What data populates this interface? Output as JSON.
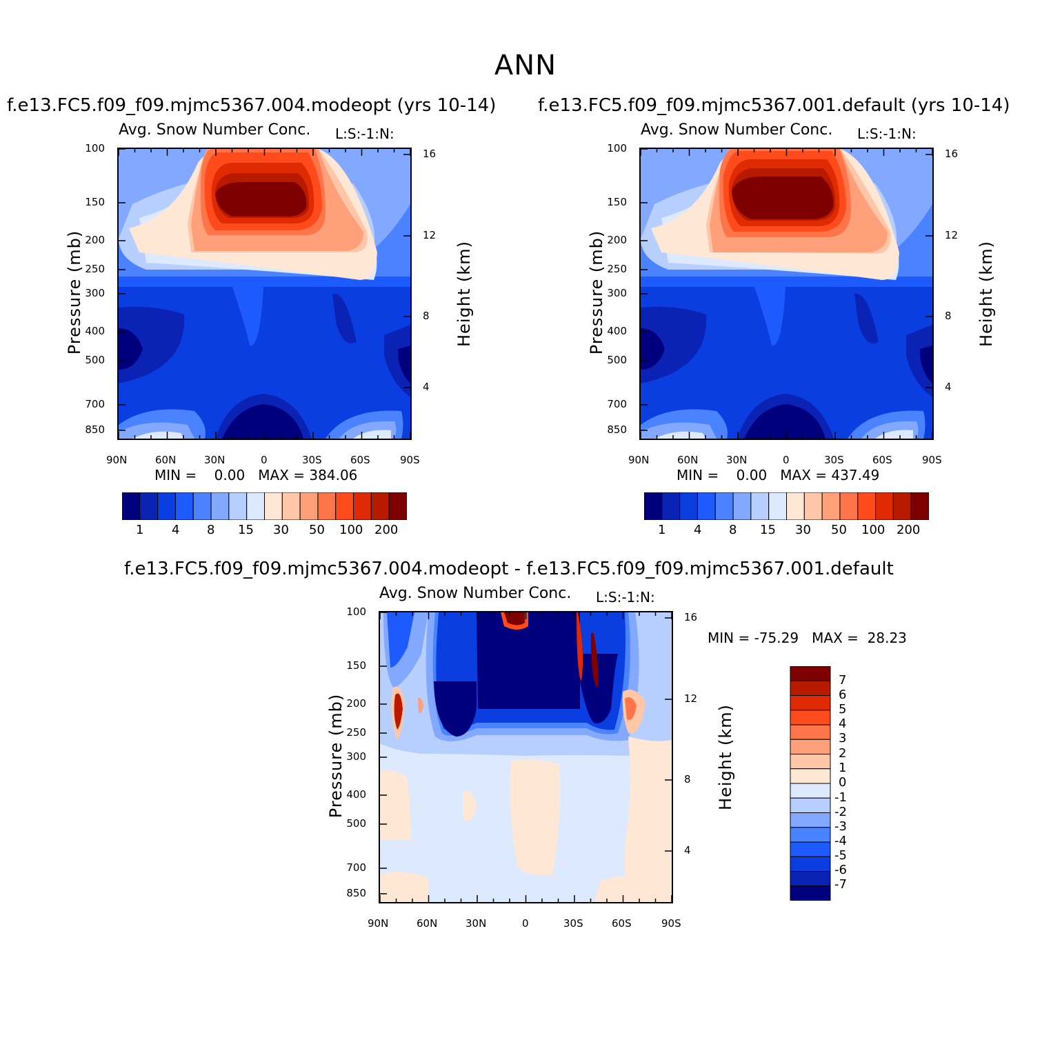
{
  "figure": {
    "title": "ANN",
    "palette": [
      "#00007f",
      "#0a23b4",
      "#0b3ee0",
      "#1e5bff",
      "#4a82ff",
      "#82a9ff",
      "#b7cfff",
      "#dce9ff",
      "#ffe7d6",
      "#ffc6a8",
      "#ffa07a",
      "#ff7448",
      "#ff4a1c",
      "#e02a04",
      "#b81a00",
      "#7f0000"
    ]
  },
  "chart_data": [
    {
      "type": "contour",
      "panel": "model",
      "title": "f.e13.FC5.f09_f09.mjmc5367.004.modeopt (yrs 10-14)",
      "subtitle_left": "Avg. Snow Number Conc.",
      "subtitle_right": "L:S:-1:N:",
      "ylabel": "Pressure (mb)",
      "ylabel_right": "Height (km)",
      "x_ticks": [
        "90N",
        "60N",
        "30N",
        "0",
        "30S",
        "60S",
        "90S"
      ],
      "y_ticks": [
        "100",
        "150",
        "200",
        "250",
        "300",
        "400",
        "500",
        "700",
        "850"
      ],
      "y_ticks_right": [
        "16",
        "12",
        "8",
        "4"
      ],
      "min_label": "MIN =",
      "min_value": "0.00",
      "max_label": "MAX =",
      "max_value": "384.06",
      "colorbar_levels": [
        "1",
        "4",
        "8",
        "15",
        "30",
        "50",
        "100",
        "200"
      ]
    },
    {
      "type": "contour",
      "panel": "control",
      "title": "f.e13.FC5.f09_f09.mjmc5367.001.default (yrs 10-14)",
      "subtitle_left": "Avg. Snow Number Conc.",
      "subtitle_right": "L:S:-1:N:",
      "ylabel": "Pressure (mb)",
      "ylabel_right": "Height (km)",
      "x_ticks": [
        "90N",
        "60N",
        "30N",
        "0",
        "30S",
        "60S",
        "90S"
      ],
      "y_ticks": [
        "100",
        "150",
        "200",
        "250",
        "300",
        "400",
        "500",
        "700",
        "850"
      ],
      "y_ticks_right": [
        "16",
        "12",
        "8",
        "4"
      ],
      "min_label": "MIN =",
      "min_value": "0.00",
      "max_label": "MAX =",
      "max_value": "437.49",
      "colorbar_levels": [
        "1",
        "4",
        "8",
        "15",
        "30",
        "50",
        "100",
        "200"
      ]
    },
    {
      "type": "contour",
      "panel": "difference",
      "title": "f.e13.FC5.f09_f09.mjmc5367.004.modeopt - f.e13.FC5.f09_f09.mjmc5367.001.default",
      "subtitle_left": "Avg. Snow Number Conc.",
      "subtitle_right": "L:S:-1:N:",
      "ylabel": "Pressure (mb)",
      "ylabel_right": "Height (km)",
      "x_ticks": [
        "90N",
        "60N",
        "30N",
        "0",
        "30S",
        "60S",
        "90S"
      ],
      "y_ticks": [
        "100",
        "150",
        "200",
        "250",
        "300",
        "400",
        "500",
        "700",
        "850"
      ],
      "y_ticks_right": [
        "16",
        "12",
        "8",
        "4"
      ],
      "min_label": "MIN =",
      "min_value": "-75.29",
      "max_label": "MAX =",
      "max_value": "28.23",
      "colorbar_levels": [
        "7",
        "6",
        "5",
        "4",
        "3",
        "2",
        "1",
        "0",
        "-1",
        "-2",
        "-3",
        "-4",
        "-5",
        "-6",
        "-7"
      ]
    }
  ]
}
